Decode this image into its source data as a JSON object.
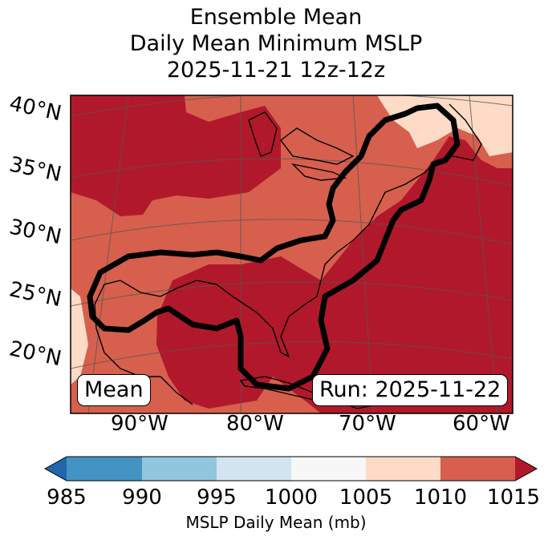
{
  "title": [
    "Ensemble Mean",
    "Daily Mean Minimum MSLP",
    "2025-11-21 12z-12z"
  ],
  "lat_labels": [
    "40°N",
    "35°N",
    "30°N",
    "25°N",
    "20°N"
  ],
  "lon_labels": [
    "90°W",
    "80°W",
    "70°W",
    "60°W"
  ],
  "mean_label": "Mean",
  "run_label": "Run: 2025-11-22",
  "colorbar": {
    "label": "MSLP Daily Mean (mb)",
    "ticks": [
      "985",
      "990",
      "995",
      "1000",
      "1005",
      "1010",
      "1015"
    ],
    "colors": [
      "#2166ac",
      "#4393c3",
      "#92c5de",
      "#d1e5f0",
      "#f7f7f7",
      "#fddbc7",
      "#d6604d",
      "#b2182b"
    ],
    "extend": "both"
  }
}
